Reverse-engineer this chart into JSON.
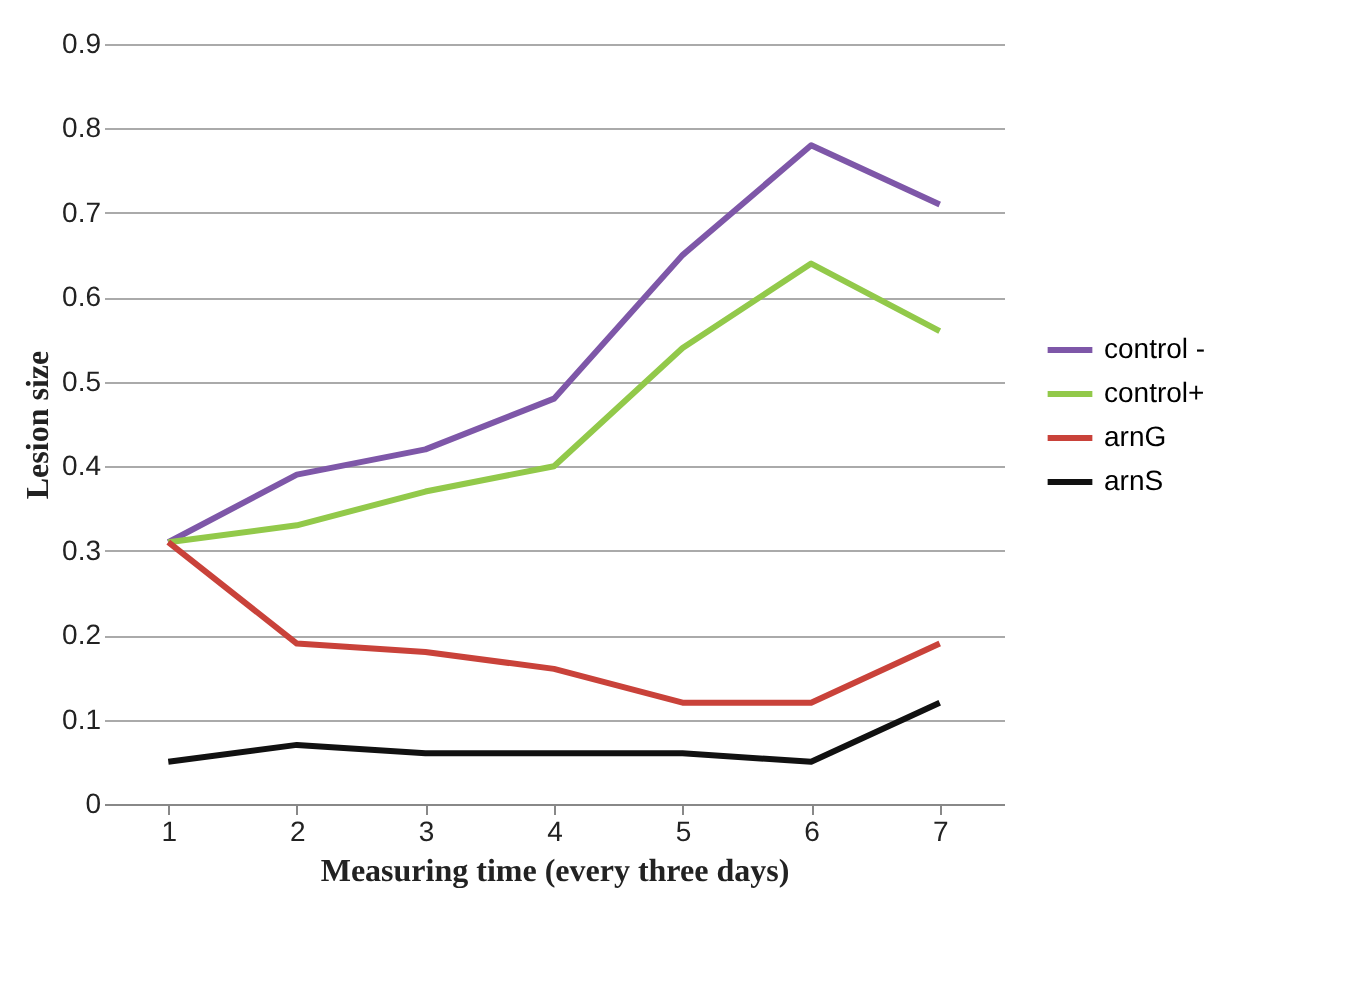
{
  "chart_data": {
    "type": "line",
    "xlabel": "Measuring  time (every three days)",
    "ylabel": "Lesion size",
    "categories": [
      "1",
      "2",
      "3",
      "4",
      "5",
      "6",
      "7"
    ],
    "series": [
      {
        "name": "control -",
        "color": "#7e57a8",
        "values": [
          0.31,
          0.39,
          0.42,
          0.48,
          0.65,
          0.78,
          0.71
        ]
      },
      {
        "name": "control+",
        "color": "#92c94a",
        "values": [
          0.31,
          0.33,
          0.37,
          0.4,
          0.54,
          0.64,
          0.56
        ]
      },
      {
        "name": "arnG",
        "color": "#c9423a",
        "values": [
          0.31,
          0.19,
          0.18,
          0.16,
          0.12,
          0.12,
          0.19
        ]
      },
      {
        "name": "arnS",
        "color": "#111111",
        "values": [
          0.05,
          0.07,
          0.06,
          0.06,
          0.06,
          0.05,
          0.12
        ]
      }
    ],
    "ylim": [
      0,
      0.9
    ],
    "yticks": [
      {
        "value": 0,
        "label": "0"
      },
      0.1,
      0.2,
      0.3,
      0.4,
      0.5,
      0.6,
      0.7,
      0.8,
      0.9
    ],
    "grid": "y",
    "legend": "right",
    "marker": "none",
    "line_style": "solid"
  }
}
